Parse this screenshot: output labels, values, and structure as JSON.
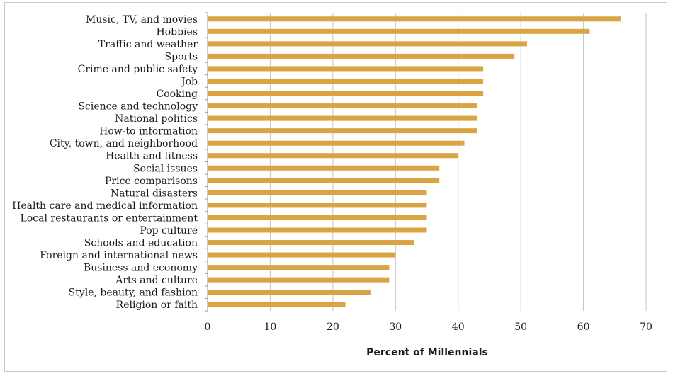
{
  "chart_data": {
    "type": "bar",
    "orientation": "horizontal",
    "title": "",
    "xlabel": "Percent of Millennials",
    "ylabel": "",
    "xlim": [
      0,
      70
    ],
    "xticks": [
      0,
      10,
      20,
      30,
      40,
      50,
      60,
      70
    ],
    "grid": "vertical",
    "bar_color": "#d9a441",
    "categories": [
      "Music, TV, and movies",
      "Hobbies",
      "Traffic and weather",
      "Sports",
      "Crime and public safety",
      "Job",
      "Cooking",
      "Science and technology",
      "National politics",
      "How-to information",
      "City, town, and neighborhood",
      "Health and fitness",
      "Social issues",
      "Price comparisons",
      "Natural disasters",
      "Health care and medical information",
      "Local restaurants or entertainment",
      "Pop culture",
      "Schools and education",
      "Foreign and international news",
      "Business and economy",
      "Arts and culture",
      "Style, beauty, and fashion",
      "Religion or faith"
    ],
    "values": [
      66,
      61,
      51,
      49,
      44,
      44,
      44,
      43,
      43,
      43,
      41,
      40,
      37,
      37,
      35,
      35,
      35,
      35,
      33,
      30,
      29,
      29,
      26,
      22
    ]
  }
}
